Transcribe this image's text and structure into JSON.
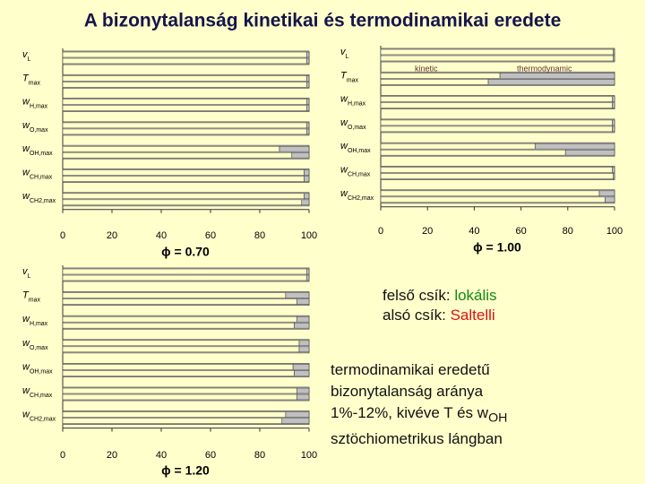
{
  "title": "A bizonytalanság kinetikai és termodinamikai eredete",
  "chart_data": [
    {
      "type": "bar",
      "orientation": "horizontal",
      "stacked": true,
      "subtitle": "ϕ = 0.70",
      "categories": [
        {
          "main": "v",
          "sub": "L"
        },
        {
          "main": "T",
          "sub": "max"
        },
        {
          "main": "w",
          "sub": "H,max"
        },
        {
          "main": "w",
          "sub": "O,max"
        },
        {
          "main": "w",
          "sub": "OH,max"
        },
        {
          "main": "w",
          "sub": "CH,max"
        },
        {
          "main": "w",
          "sub": "CH2,max"
        }
      ],
      "series": [
        {
          "color": "#ffffc8",
          "values": [
            99,
            99,
            99,
            99,
            88,
            98,
            98
          ],
          "lower_values": [
            99,
            99,
            99,
            99,
            93,
            98,
            97
          ]
        },
        {
          "color": "#c0c0c0",
          "values": [
            1,
            1,
            1,
            1,
            12,
            2,
            2
          ],
          "lower_values": [
            1,
            1,
            1,
            1,
            7,
            2,
            3
          ]
        }
      ],
      "xlim": [
        0,
        100
      ],
      "xticks": [
        0,
        20,
        40,
        60,
        80,
        100
      ]
    },
    {
      "type": "bar",
      "orientation": "horizontal",
      "stacked": true,
      "subtitle": "ϕ = 1.00",
      "categories": [
        {
          "main": "v",
          "sub": "L"
        },
        {
          "main": "T",
          "sub": "max"
        },
        {
          "main": "w",
          "sub": "H,max"
        },
        {
          "main": "w",
          "sub": "O,max"
        },
        {
          "main": "w",
          "sub": "OH,max"
        },
        {
          "main": "w",
          "sub": "CH,max"
        },
        {
          "main": "w",
          "sub": "CH2,max"
        }
      ],
      "series": [
        {
          "name": "kinetic",
          "color": "#ffffc8",
          "values": [
            99.5,
            51,
            99,
            99,
            66,
            99,
            93.5
          ],
          "lower_values": [
            99.5,
            46,
            99,
            99,
            79,
            99.5,
            96
          ]
        },
        {
          "name": "thermodynamic",
          "color": "#c0c0c0",
          "values": [
            0.5,
            49,
            1,
            1,
            34,
            1,
            6.5
          ],
          "lower_values": [
            0.5,
            54,
            1,
            1,
            21,
            0.5,
            4
          ]
        }
      ],
      "xlim": [
        0,
        100
      ],
      "xticks": [
        0,
        20,
        40,
        60,
        80,
        100
      ]
    },
    {
      "type": "bar",
      "orientation": "horizontal",
      "stacked": true,
      "subtitle": "ϕ = 1.20",
      "categories": [
        {
          "main": "v",
          "sub": "L"
        },
        {
          "main": "T",
          "sub": "max"
        },
        {
          "main": "w",
          "sub": "H,max"
        },
        {
          "main": "w",
          "sub": "O,max"
        },
        {
          "main": "w",
          "sub": "OH,max"
        },
        {
          "main": "w",
          "sub": "CH,max"
        },
        {
          "main": "w",
          "sub": "CH2,max"
        }
      ],
      "series": [
        {
          "color": "#ffffc8",
          "values": [
            99,
            90.5,
            95,
            96,
            93.5,
            95,
            90.5
          ],
          "lower_values": [
            99,
            95,
            94,
            96,
            94,
            95,
            89
          ]
        },
        {
          "color": "#c0c0c0",
          "values": [
            1,
            9.5,
            5,
            4,
            6.5,
            5,
            9.5
          ],
          "lower_values": [
            1,
            5,
            6,
            4,
            6,
            5,
            11
          ]
        }
      ],
      "xlim": [
        0,
        100
      ],
      "xticks": [
        0,
        20,
        40,
        60,
        80,
        100
      ]
    }
  ],
  "legend_notes": [
    {
      "label": "felső csík: ",
      "value": "lokális",
      "color": "#118811"
    },
    {
      "label": "alsó csík: ",
      "value": "Saltelli",
      "color": "#dd1111"
    }
  ],
  "conclusion": {
    "line1": "termodinamikai eredetű",
    "line2": "bizonytalanság aránya",
    "line3": "1%-12%, kivéve T és w",
    "line3_sub": "OH",
    "line4": "sztöchiometrikus lángban"
  }
}
